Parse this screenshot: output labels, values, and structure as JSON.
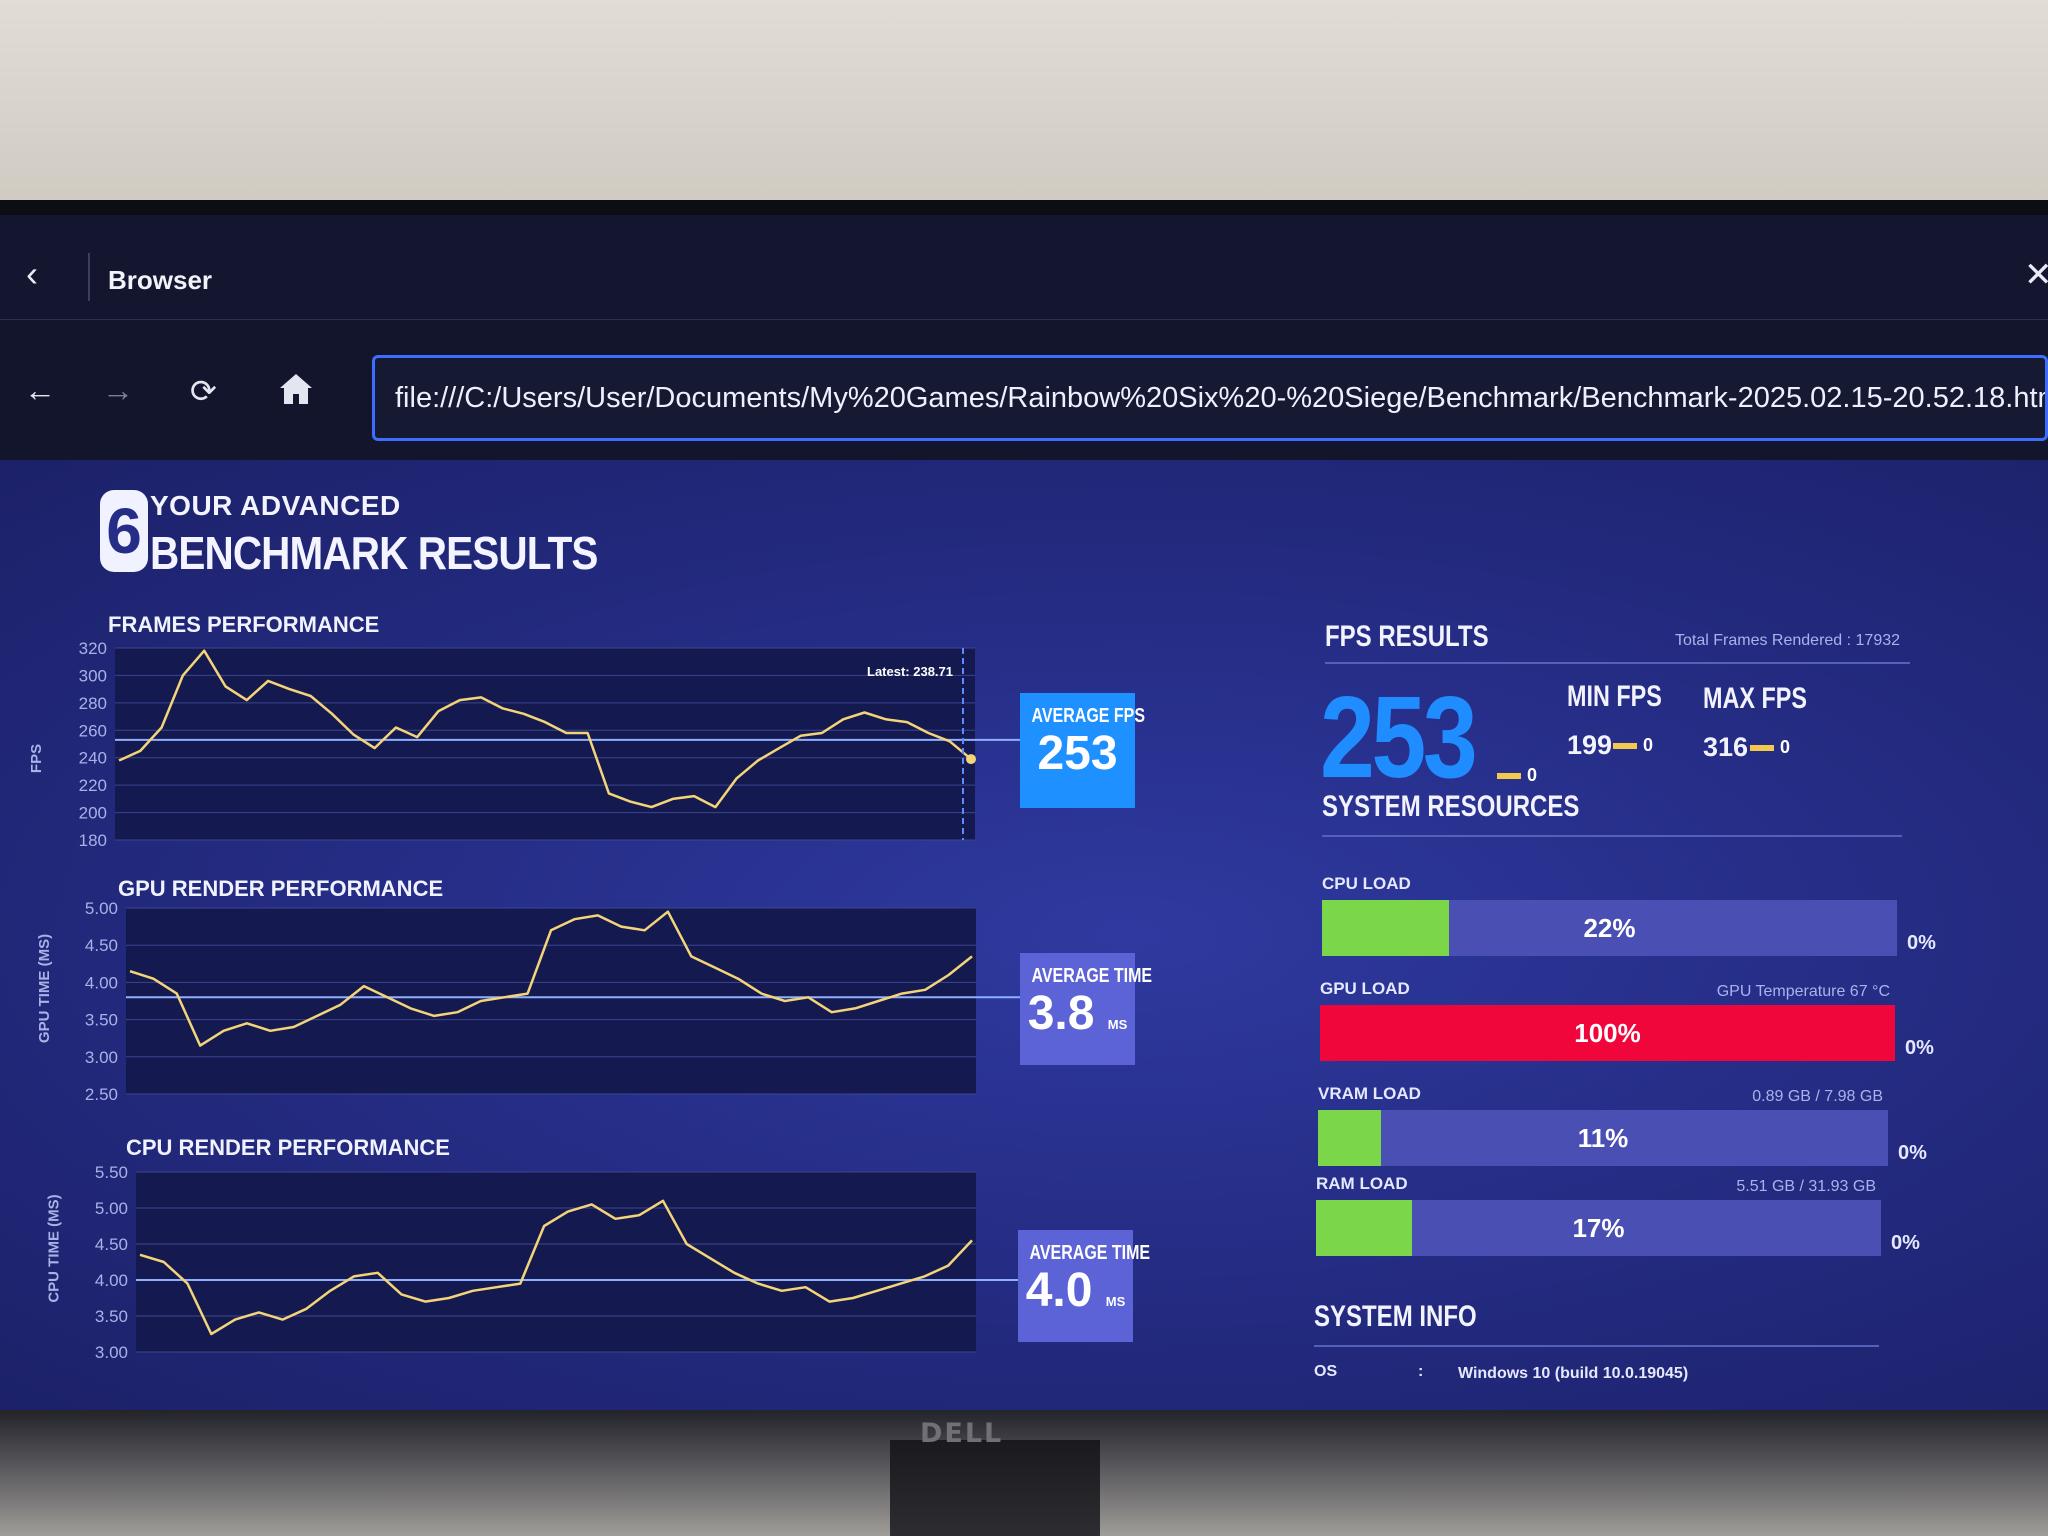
{
  "browser": {
    "title": "Browser",
    "url": "file:///C:/Users/User/Documents/My%20Games/Rainbow%20Six%20-%20Siege/Benchmark/Benchmark-2025.02.15-20.52.18.htm"
  },
  "header": {
    "logo_digit": "6",
    "line1": "YOUR ADVANCED",
    "line2": "BENCHMARK RESULTS"
  },
  "frames": {
    "title": "FRAMES PERFORMANCE",
    "ylabel": "FPS",
    "ticks": [
      "320",
      "300",
      "280",
      "260",
      "240",
      "220",
      "200",
      "180"
    ],
    "latest": "Latest: 238.71",
    "avg_label": "AVERAGE FPS",
    "avg_value": "253",
    "avg_color": "#1e90ff"
  },
  "gpu": {
    "title": "GPU RENDER PERFORMANCE",
    "ylabel": "GPU TIME (MS)",
    "ticks": [
      "5.00",
      "4.50",
      "4.00",
      "3.50",
      "3.00",
      "2.50"
    ],
    "avg_label": "AVERAGE TIME",
    "avg_value": "3.8",
    "avg_unit": "MS",
    "avg_color": "#5b63d6"
  },
  "cpu": {
    "title": "CPU RENDER PERFORMANCE",
    "ylabel": "CPU TIME (MS)",
    "ticks": [
      "5.50",
      "5.00",
      "4.50",
      "4.00",
      "3.50",
      "3.00"
    ],
    "avg_label": "AVERAGE TIME",
    "avg_value": "4.0",
    "avg_unit": "MS",
    "avg_color": "#5b63d6"
  },
  "fps_results": {
    "title": "FPS RESULTS",
    "total_frames": "Total Frames Rendered : 17932",
    "avg": "253",
    "avg_suffix": "0",
    "min_label": "MIN FPS",
    "min_value": "199",
    "min_suffix": "0",
    "max_label": "MAX FPS",
    "max_value": "316",
    "max_suffix": "0"
  },
  "system_resources": {
    "title": "SYSTEM RESOURCES",
    "items": [
      {
        "label": "CPU LOAD",
        "info": "",
        "percent": "22%",
        "fill": 0.22,
        "color": "#7cd64a",
        "zero": "0%"
      },
      {
        "label": "GPU LOAD",
        "info": "GPU Temperature 67 °C",
        "percent": "100%",
        "fill": 1.0,
        "color": "#f0063a",
        "zero": "0%"
      },
      {
        "label": "VRAM LOAD",
        "info": "0.89 GB / 7.98 GB",
        "percent": "11%",
        "fill": 0.11,
        "color": "#7cd64a",
        "zero": "0%"
      },
      {
        "label": "RAM LOAD",
        "info": "5.51 GB / 31.93 GB",
        "percent": "17%",
        "fill": 0.17,
        "color": "#7cd64a",
        "zero": "0%"
      }
    ]
  },
  "system_info": {
    "title": "SYSTEM INFO",
    "os_label": "OS",
    "colon": ":",
    "os_value": "Windows 10 (build 10.0.19045)"
  },
  "chart_data": [
    {
      "type": "line",
      "title": "FRAMES PERFORMANCE",
      "ylabel": "FPS",
      "ylim": [
        180,
        320
      ],
      "avg": 253,
      "series": [
        {
          "values": [
            238,
            245,
            262,
            300,
            318,
            292,
            282,
            296,
            290,
            285,
            272,
            257,
            247,
            262,
            255,
            274,
            282,
            284,
            276,
            272,
            266,
            258,
            258,
            214,
            208,
            204,
            210,
            212,
            204,
            225,
            238,
            247,
            256,
            258,
            268,
            273,
            268,
            266,
            258,
            252,
            239
          ]
        }
      ]
    },
    {
      "type": "line",
      "title": "GPU RENDER PERFORMANCE",
      "ylabel": "GPU TIME (MS)",
      "ylim": [
        2.5,
        5.0
      ],
      "avg": 3.8,
      "series": [
        {
          "values": [
            4.15,
            4.05,
            3.85,
            3.15,
            3.35,
            3.45,
            3.35,
            3.4,
            3.55,
            3.7,
            3.95,
            3.8,
            3.65,
            3.55,
            3.6,
            3.75,
            3.8,
            3.85,
            4.7,
            4.85,
            4.9,
            4.75,
            4.7,
            4.95,
            4.35,
            4.2,
            4.05,
            3.85,
            3.75,
            3.8,
            3.6,
            3.65,
            3.75,
            3.85,
            3.9,
            4.1,
            4.35
          ]
        }
      ]
    },
    {
      "type": "line",
      "title": "CPU RENDER PERFORMANCE",
      "ylabel": "CPU TIME (MS)",
      "ylim": [
        3.0,
        5.5
      ],
      "avg": 4.0,
      "series": [
        {
          "values": [
            4.35,
            4.25,
            3.95,
            3.25,
            3.45,
            3.55,
            3.45,
            3.6,
            3.85,
            4.05,
            4.1,
            3.8,
            3.7,
            3.75,
            3.85,
            3.9,
            3.95,
            4.75,
            4.95,
            5.05,
            4.85,
            4.9,
            5.1,
            4.5,
            4.3,
            4.1,
            3.95,
            3.85,
            3.9,
            3.7,
            3.75,
            3.85,
            3.95,
            4.05,
            4.2,
            4.55
          ]
        }
      ]
    }
  ]
}
